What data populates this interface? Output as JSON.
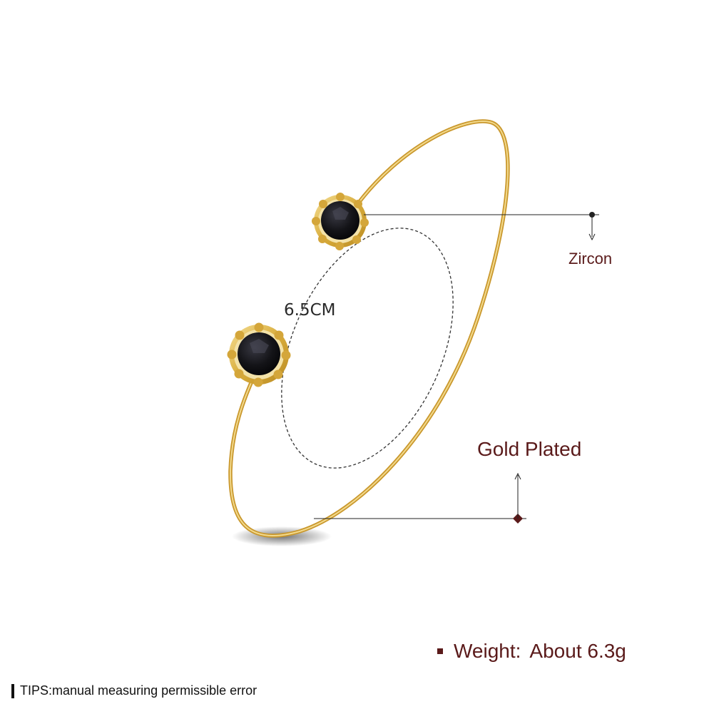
{
  "product": {
    "stone_label": "Zircon",
    "plating_label": "Gold Plated",
    "diameter_label": "6.5CM"
  },
  "specs": {
    "weight_label": "Weight:",
    "weight_value": "About 6.3g"
  },
  "footer": {
    "tips": "TIPS:manual measuring permissible error"
  },
  "colors": {
    "label_text": "#5a1a1a",
    "gold": "#e0b94e",
    "stone": "#141418",
    "guide_line": "#222222"
  }
}
